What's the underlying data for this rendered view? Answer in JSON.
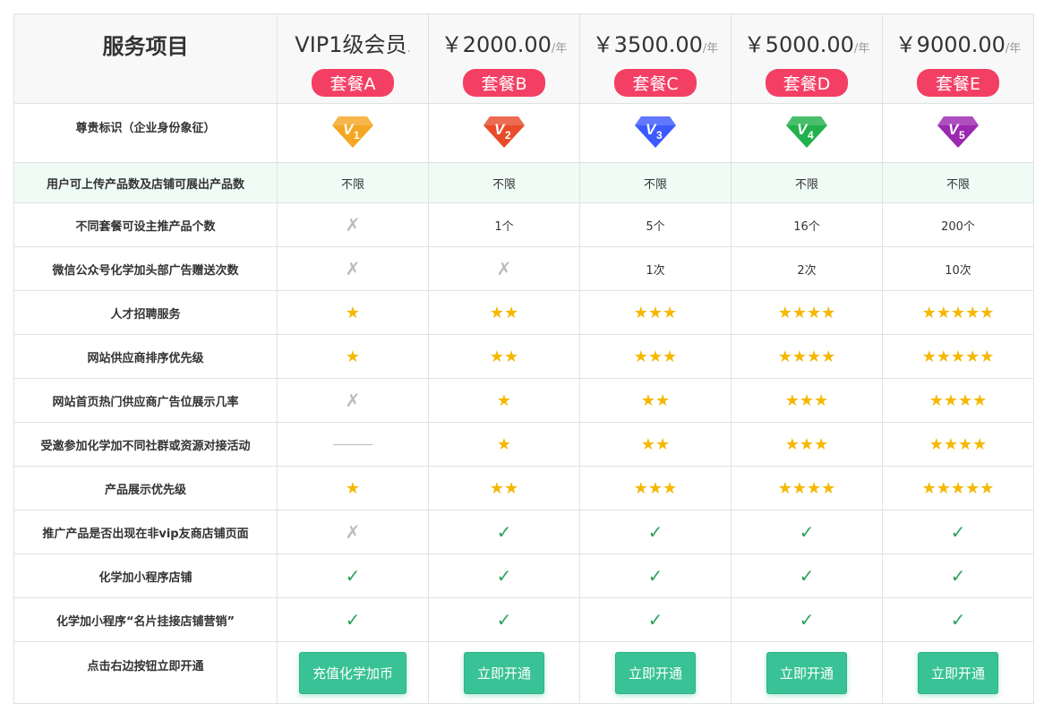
{
  "header": {
    "title": "服务项目",
    "plans": [
      {
        "price": "VIP1级会员",
        "unit": ".",
        "package": "套餐A"
      },
      {
        "price": "￥2000.00",
        "unit": "/年",
        "package": "套餐B"
      },
      {
        "price": "￥3500.00",
        "unit": "/年",
        "package": "套餐C"
      },
      {
        "price": "￥5000.00",
        "unit": "/年",
        "package": "套餐D"
      },
      {
        "price": "￥9000.00",
        "unit": "/年",
        "package": "套餐E"
      }
    ]
  },
  "badges": {
    "label": "尊贵标识（企业身份象征）",
    "items": [
      {
        "text": "V1",
        "color": "#f5a623"
      },
      {
        "text": "V2",
        "color": "#e84c2b"
      },
      {
        "text": "V3",
        "color": "#3d5afe"
      },
      {
        "text": "V4",
        "color": "#22b14c"
      },
      {
        "text": "V5",
        "color": "#9c27b0"
      }
    ]
  },
  "rows": [
    {
      "label": "用户可上传产品数及店铺可展出产品数",
      "cells": [
        "不限",
        "不限",
        "不限",
        "不限",
        "不限"
      ],
      "highlight": true
    },
    {
      "label": "不同套餐可设主推产品个数",
      "cells": [
        "✗",
        "1个",
        "5个",
        "16个",
        "200个"
      ]
    },
    {
      "label": "微信公众号化学加头部广告赠送次数",
      "cells": [
        "✗",
        "✗",
        "1次",
        "2次",
        "10次"
      ]
    },
    {
      "label": "人才招聘服务",
      "cells": [
        "★",
        "★★",
        "★★★",
        "★★★★",
        "★★★★★"
      ]
    },
    {
      "label": "网站供应商排序优先级",
      "cells": [
        "★",
        "★★",
        "★★★",
        "★★★★",
        "★★★★★"
      ]
    },
    {
      "label": "网站首页热门供应商广告位展示几率",
      "cells": [
        "✗",
        "★",
        "★★",
        "★★★",
        "★★★★"
      ]
    },
    {
      "label": "受邀参加化学加不同社群或资源对接活动",
      "cells": [
        "—",
        "★",
        "★★",
        "★★★",
        "★★★★"
      ]
    },
    {
      "label": "产品展示优先级",
      "cells": [
        "★",
        "★★",
        "★★★",
        "★★★★",
        "★★★★★"
      ]
    },
    {
      "label": "推广产品是否出现在非vip友商店铺页面",
      "cells": [
        "✗",
        "✓",
        "✓",
        "✓",
        "✓"
      ]
    },
    {
      "label": "化学加小程序店铺",
      "cells": [
        "✓",
        "✓",
        "✓",
        "✓",
        "✓"
      ]
    },
    {
      "label": "化学加小程序“名片挂接店铺营销”",
      "cells": [
        "✓",
        "✓",
        "✓",
        "✓",
        "✓"
      ]
    }
  ],
  "actions": {
    "label": "点击右边按钮立即开通",
    "buttons": [
      "充值化学加币",
      "立即开通",
      "立即开通",
      "立即开通",
      "立即开通"
    ]
  }
}
